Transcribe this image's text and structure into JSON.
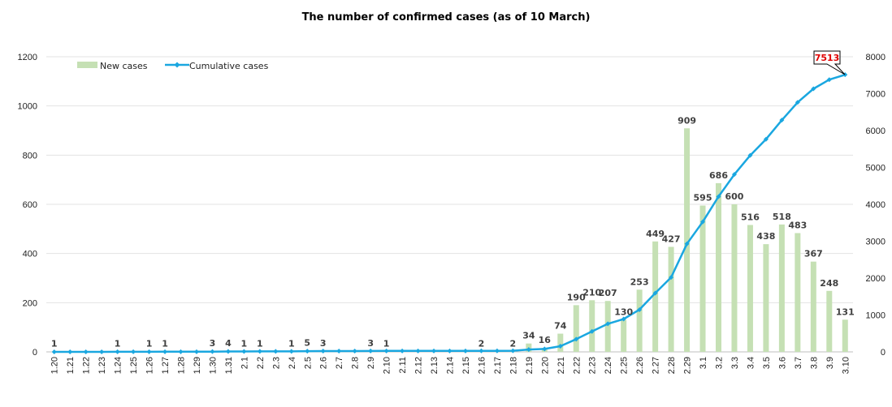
{
  "chart_data": {
    "type": "bar",
    "title": "The number of confirmed cases (as of 10 March)",
    "categories": [
      "1.20",
      "1.21",
      "1.22",
      "1.23",
      "1.24",
      "1.25",
      "1.26",
      "1.27",
      "1.28",
      "1.29",
      "1.30",
      "1.31",
      "2.1",
      "2.2",
      "2.3",
      "2.4",
      "2.5",
      "2.6",
      "2.7",
      "2.8",
      "2.9",
      "2.10",
      "2.11",
      "2.12",
      "2.13",
      "2.14",
      "2.15",
      "2.16",
      "2.17",
      "2.18",
      "2.19",
      "2.20",
      "2.21",
      "2.22",
      "2.23",
      "2.24",
      "2.25",
      "2.26",
      "2.27",
      "2.28",
      "2.29",
      "3.1",
      "3.2",
      "3.3",
      "3.4",
      "3.5",
      "3.6",
      "3.7",
      "3.8",
      "3.9",
      "3.10"
    ],
    "series": [
      {
        "name": "New cases",
        "type": "bar",
        "axis": "left",
        "color": "#c5e0b4",
        "values": [
          1,
          0,
          0,
          0,
          1,
          0,
          1,
          1,
          0,
          0,
          3,
          4,
          1,
          1,
          0,
          1,
          5,
          3,
          0,
          0,
          3,
          1,
          0,
          0,
          0,
          0,
          0,
          2,
          0,
          2,
          34,
          16,
          74,
          190,
          210,
          207,
          130,
          253,
          449,
          427,
          909,
          595,
          686,
          600,
          516,
          438,
          518,
          483,
          367,
          248,
          131
        ]
      },
      {
        "name": "Cumulative cases",
        "type": "line",
        "axis": "right",
        "color": "#1aa7e0",
        "values": [
          1,
          1,
          1,
          1,
          2,
          2,
          3,
          4,
          4,
          4,
          7,
          11,
          12,
          13,
          13,
          14,
          19,
          22,
          22,
          22,
          25,
          26,
          26,
          26,
          26,
          26,
          26,
          28,
          28,
          30,
          64,
          80,
          154,
          344,
          554,
          761,
          891,
          1144,
          1593,
          2020,
          2929,
          3524,
          4210,
          4810,
          5326,
          5764,
          6282,
          6765,
          7132,
          7380,
          7513
        ]
      }
    ],
    "data_labels": {
      "indices": [
        0,
        4,
        6,
        7,
        10,
        11,
        12,
        13,
        15,
        16,
        17,
        20,
        21,
        27,
        29,
        30,
        31,
        32,
        33,
        34,
        35,
        36,
        37,
        38,
        39,
        40,
        41,
        42,
        43,
        44,
        45,
        46,
        47,
        48,
        49,
        50
      ],
      "texts": [
        "1",
        "1",
        "1",
        "1",
        "3",
        "4",
        "1",
        "1",
        "1",
        "5",
        "3",
        "3",
        "1",
        "2",
        "2",
        "34",
        "16",
        "74",
        "190",
        "210",
        "207",
        "130",
        "253",
        "449",
        "427",
        "909",
        "595",
        "686",
        "600",
        "516",
        "438",
        "518",
        "483",
        "367",
        "248",
        "131"
      ],
      "highlight_color": "#e00000"
    },
    "callout": "7513",
    "y_left": {
      "ticks": [
        "0",
        "200",
        "400",
        "600",
        "800",
        "1000",
        "1200"
      ],
      "ylim": [
        0,
        1200
      ]
    },
    "y_right": {
      "ticks": [
        "0",
        "1000",
        "2000",
        "3000",
        "4000",
        "5000",
        "6000",
        "7000",
        "8000"
      ],
      "ylim": [
        0,
        8000
      ]
    },
    "legend_position": "top-left",
    "grid": true
  }
}
